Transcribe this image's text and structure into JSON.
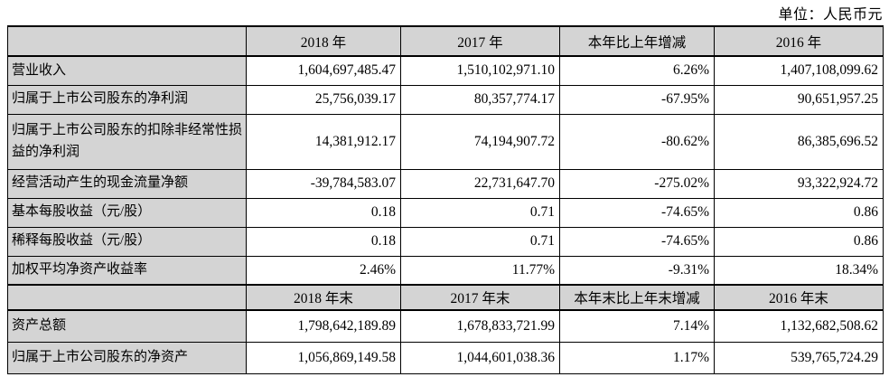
{
  "unit_label": "单位：人民币元",
  "colors": {
    "header_bg": "#d4d4d4",
    "cell_bg": "#ffffff",
    "border": "#000000",
    "text": "#000000"
  },
  "table": {
    "sections": [
      {
        "header": [
          "",
          "2018 年",
          "2017 年",
          "本年比上年增减",
          "2016 年"
        ],
        "rows": [
          {
            "label": "营业收入",
            "values": [
              "1,604,697,485.47",
              "1,510,102,971.10",
              "6.26%",
              "1,407,108,099.62"
            ]
          },
          {
            "label": "归属于上市公司股东的净利润",
            "values": [
              "25,756,039.17",
              "80,357,774.17",
              "-67.95%",
              "90,651,957.25"
            ]
          },
          {
            "label": "归属于上市公司股东的扣除非经常性损益的净利润",
            "values": [
              "14,381,912.17",
              "74,194,907.72",
              "-80.62%",
              "86,385,696.52"
            ]
          },
          {
            "label": "经营活动产生的现金流量净额",
            "values": [
              "-39,784,583.07",
              "22,731,647.70",
              "-275.02%",
              "93,322,924.72"
            ]
          },
          {
            "label": "基本每股收益（元/股）",
            "values": [
              "0.18",
              "0.71",
              "-74.65%",
              "0.86"
            ]
          },
          {
            "label": "稀释每股收益（元/股）",
            "values": [
              "0.18",
              "0.71",
              "-74.65%",
              "0.86"
            ]
          },
          {
            "label": "加权平均净资产收益率",
            "values": [
              "2.46%",
              "11.77%",
              "-9.31%",
              "18.34%"
            ]
          }
        ]
      },
      {
        "header": [
          "",
          "2018 年末",
          "2017 年末",
          "本年末比上年末增减",
          "2016 年末"
        ],
        "rows": [
          {
            "label": "资产总额",
            "values": [
              "1,798,642,189.89",
              "1,678,833,721.99",
              "7.14%",
              "1,132,682,508.62"
            ]
          },
          {
            "label": "归属于上市公司股东的净资产",
            "values": [
              "1,056,869,149.58",
              "1,044,601,038.36",
              "1.17%",
              "539,765,724.29"
            ]
          }
        ]
      }
    ]
  }
}
